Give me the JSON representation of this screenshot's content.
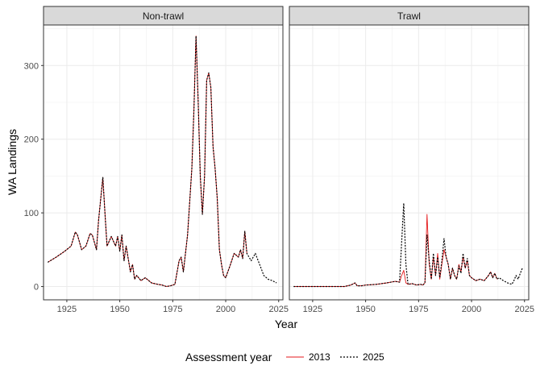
{
  "chart_data": {
    "type": "line",
    "xlabel": "Year",
    "ylabel": "WA Landings",
    "xlim": [
      1914,
      2027
    ],
    "ylim": [
      -18,
      355
    ],
    "x_ticks": [
      1925,
      1950,
      1975,
      2000,
      2025
    ],
    "y_ticks": [
      0,
      100,
      200,
      300
    ],
    "grid": true,
    "legend": {
      "title": "Assessment year",
      "position": "bottom",
      "entries": [
        {
          "label": "2013",
          "color": "#e41a1c",
          "style": "solid"
        },
        {
          "label": "2025",
          "color": "#000000",
          "style": "dotted"
        }
      ]
    },
    "panels": [
      {
        "name": "Non-trawl",
        "series": [
          {
            "name": "2013",
            "x": [
              1916,
              1920,
              1924,
              1927,
              1929,
              1930,
              1932,
              1934,
              1936,
              1937,
              1939,
              1940,
              1942,
              1943,
              1944,
              1946,
              1948,
              1949,
              1950,
              1951,
              1952,
              1953,
              1955,
              1956,
              1957,
              1958,
              1960,
              1962,
              1965,
              1968,
              1970,
              1972,
              1974,
              1976,
              1978,
              1979,
              1980,
              1981,
              1982,
              1984,
              1985,
              1986,
              1987,
              1988,
              1989,
              1990,
              1991,
              1992,
              1993,
              1994,
              1995,
              1996,
              1997,
              1998,
              1999,
              2000,
              2002,
              2004,
              2006,
              2007,
              2008,
              2009,
              2010
            ],
            "values": [
              33,
              40,
              48,
              55,
              74,
              70,
              50,
              55,
              72,
              70,
              50,
              90,
              148,
              100,
              55,
              68,
              55,
              68,
              48,
              70,
              35,
              55,
              20,
              30,
              10,
              15,
              8,
              12,
              5,
              3,
              2,
              0,
              1,
              3,
              35,
              40,
              20,
              45,
              70,
              160,
              240,
              340,
              250,
              150,
              98,
              150,
              280,
              290,
              270,
              190,
              160,
              120,
              50,
              30,
              15,
              12,
              28,
              45,
              40,
              50,
              38,
              75,
              45
            ]
          },
          {
            "name": "2025",
            "x": [
              1916,
              1920,
              1924,
              1927,
              1929,
              1930,
              1932,
              1934,
              1936,
              1937,
              1939,
              1940,
              1942,
              1943,
              1944,
              1946,
              1948,
              1949,
              1950,
              1951,
              1952,
              1953,
              1955,
              1956,
              1957,
              1958,
              1960,
              1962,
              1965,
              1968,
              1970,
              1972,
              1974,
              1976,
              1978,
              1979,
              1980,
              1981,
              1982,
              1984,
              1985,
              1986,
              1987,
              1988,
              1989,
              1990,
              1991,
              1992,
              1993,
              1994,
              1995,
              1996,
              1997,
              1998,
              1999,
              2000,
              2002,
              2004,
              2006,
              2007,
              2008,
              2009,
              2010,
              2012,
              2014,
              2016,
              2018,
              2020,
              2022,
              2024
            ],
            "values": [
              33,
              40,
              48,
              55,
              74,
              70,
              50,
              55,
              72,
              70,
              50,
              90,
              148,
              100,
              55,
              68,
              55,
              68,
              48,
              70,
              35,
              55,
              20,
              30,
              10,
              15,
              8,
              12,
              5,
              3,
              2,
              0,
              1,
              3,
              35,
              40,
              20,
              45,
              70,
              160,
              240,
              340,
              250,
              150,
              98,
              150,
              280,
              290,
              270,
              190,
              160,
              120,
              50,
              30,
              15,
              12,
              28,
              45,
              40,
              50,
              38,
              75,
              45,
              35,
              45,
              30,
              15,
              10,
              8,
              5
            ]
          }
        ]
      },
      {
        "name": "Trawl",
        "series": [
          {
            "name": "2013",
            "x": [
              1916,
              1930,
              1940,
              1943,
              1945,
              1946,
              1948,
              1950,
              1955,
              1960,
              1964,
              1966,
              1967,
              1968,
              1969,
              1970,
              1972,
              1974,
              1976,
              1977,
              1978,
              1979,
              1980,
              1981,
              1982,
              1983,
              1984,
              1985,
              1986,
              1987,
              1988,
              1989,
              1990,
              1991,
              1992,
              1993,
              1994,
              1995,
              1996,
              1997,
              1998,
              1999,
              2000,
              2002,
              2004,
              2006,
              2008,
              2009,
              2010,
              2011,
              2012
            ],
            "values": [
              0,
              0,
              0,
              2,
              5,
              1,
              1,
              2,
              3,
              5,
              7,
              6,
              15,
              22,
              5,
              3,
              4,
              2,
              3,
              2,
              5,
              98,
              30,
              10,
              40,
              15,
              45,
              10,
              30,
              50,
              40,
              30,
              10,
              25,
              15,
              10,
              30,
              20,
              40,
              25,
              35,
              15,
              12,
              8,
              10,
              8,
              15,
              20,
              12,
              18,
              10
            ]
          },
          {
            "name": "2025",
            "x": [
              1916,
              1930,
              1940,
              1943,
              1945,
              1946,
              1948,
              1950,
              1955,
              1960,
              1964,
              1966,
              1967,
              1968,
              1969,
              1970,
              1972,
              1974,
              1976,
              1977,
              1978,
              1979,
              1980,
              1981,
              1982,
              1983,
              1984,
              1985,
              1986,
              1987,
              1988,
              1989,
              1990,
              1991,
              1992,
              1993,
              1994,
              1995,
              1996,
              1997,
              1998,
              1999,
              2000,
              2002,
              2004,
              2006,
              2008,
              2009,
              2010,
              2011,
              2012,
              2013,
              2015,
              2017,
              2019,
              2020,
              2021,
              2022,
              2023,
              2024
            ],
            "values": [
              0,
              0,
              0,
              2,
              5,
              1,
              1,
              2,
              3,
              5,
              7,
              6,
              60,
              113,
              30,
              3,
              4,
              2,
              3,
              2,
              5,
              70,
              35,
              10,
              45,
              15,
              40,
              12,
              35,
              65,
              40,
              30,
              10,
              25,
              15,
              10,
              28,
              18,
              45,
              25,
              38,
              15,
              12,
              8,
              10,
              8,
              15,
              20,
              12,
              18,
              10,
              12,
              8,
              5,
              3,
              8,
              15,
              10,
              18,
              25
            ]
          }
        ]
      }
    ]
  }
}
